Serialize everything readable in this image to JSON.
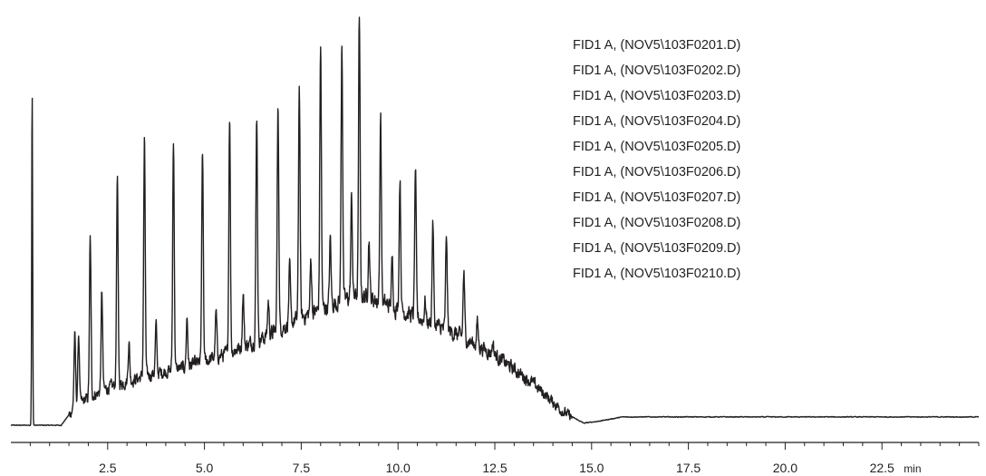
{
  "chart_data": {
    "type": "line",
    "title": "",
    "xlabel": "",
    "ylabel": "",
    "x_unit": "min",
    "xlim": [
      0,
      25
    ],
    "ylim": [
      0,
      1
    ],
    "grid": false,
    "y_axis_shown": false,
    "legend_position": "top-right",
    "line_color": "#231f20",
    "x_ticks": [
      2.5,
      5.0,
      7.5,
      10.0,
      12.5,
      15.0,
      17.5,
      20.0,
      22.5
    ],
    "x_tick_labels": [
      "2.5",
      "5.0",
      "7.5",
      "10.0",
      "12.5",
      "15.0",
      "17.5",
      "20.0",
      "22.5"
    ],
    "minor_tick_step": 0.5,
    "series": [
      {
        "name": "FID1 A, (NOV5\\103F0201.D)"
      },
      {
        "name": "FID1 A, (NOV5\\103F0202.D)"
      },
      {
        "name": "FID1 A, (NOV5\\103F0203.D)"
      },
      {
        "name": "FID1 A, (NOV5\\103F0204.D)"
      },
      {
        "name": "FID1 A, (NOV5\\103F0205.D)"
      },
      {
        "name": "FID1 A, (NOV5\\103F0206.D)"
      },
      {
        "name": "FID1 A, (NOV5\\103F0207.D)"
      },
      {
        "name": "FID1 A, (NOV5\\103F0208.D)"
      },
      {
        "name": "FID1 A, (NOV5\\103F0209.D)"
      },
      {
        "name": "FID1 A, (NOV5\\103F0210.D)"
      }
    ],
    "baseline": 0.0,
    "hump": [
      [
        0,
        0.0
      ],
      [
        1.3,
        0.0
      ],
      [
        1.7,
        0.05
      ],
      [
        2.5,
        0.09
      ],
      [
        3.5,
        0.12
      ],
      [
        4.5,
        0.14
      ],
      [
        5.5,
        0.17
      ],
      [
        6.5,
        0.21
      ],
      [
        7.5,
        0.26
      ],
      [
        8.5,
        0.3
      ],
      [
        9.0,
        0.315
      ],
      [
        9.5,
        0.3
      ],
      [
        10.5,
        0.26
      ],
      [
        11.5,
        0.22
      ],
      [
        12.5,
        0.17
      ],
      [
        13.5,
        0.1
      ],
      [
        14.3,
        0.03
      ],
      [
        14.8,
        0.005
      ],
      [
        15.2,
        0.01
      ],
      [
        15.8,
        0.02
      ],
      [
        25,
        0.02
      ]
    ],
    "peaks": [
      {
        "rt": 0.55,
        "height": 0.8
      },
      {
        "rt": 1.65,
        "height": 0.22
      },
      {
        "rt": 1.75,
        "height": 0.22
      },
      {
        "rt": 2.05,
        "height": 0.45
      },
      {
        "rt": 2.35,
        "height": 0.32
      },
      {
        "rt": 2.75,
        "height": 0.6
      },
      {
        "rt": 3.05,
        "height": 0.2
      },
      {
        "rt": 3.45,
        "height": 0.69
      },
      {
        "rt": 3.75,
        "height": 0.24
      },
      {
        "rt": 4.2,
        "height": 0.69
      },
      {
        "rt": 4.55,
        "height": 0.26
      },
      {
        "rt": 4.95,
        "height": 0.66
      },
      {
        "rt": 5.3,
        "height": 0.27
      },
      {
        "rt": 5.65,
        "height": 0.75
      },
      {
        "rt": 6.0,
        "height": 0.32
      },
      {
        "rt": 6.35,
        "height": 0.75
      },
      {
        "rt": 6.65,
        "height": 0.3
      },
      {
        "rt": 6.9,
        "height": 0.78
      },
      {
        "rt": 7.2,
        "height": 0.38
      },
      {
        "rt": 7.45,
        "height": 0.82
      },
      {
        "rt": 7.75,
        "height": 0.4
      },
      {
        "rt": 8.0,
        "height": 0.92
      },
      {
        "rt": 8.25,
        "height": 0.45
      },
      {
        "rt": 8.55,
        "height": 0.93
      },
      {
        "rt": 8.8,
        "height": 0.55
      },
      {
        "rt": 9.0,
        "height": 0.98
      },
      {
        "rt": 9.25,
        "height": 0.45
      },
      {
        "rt": 9.55,
        "height": 0.75
      },
      {
        "rt": 9.85,
        "height": 0.4
      },
      {
        "rt": 10.05,
        "height": 0.6
      },
      {
        "rt": 10.45,
        "height": 0.62
      },
      {
        "rt": 10.7,
        "height": 0.3
      },
      {
        "rt": 10.9,
        "height": 0.49
      },
      {
        "rt": 11.25,
        "height": 0.46
      },
      {
        "rt": 11.7,
        "height": 0.37
      },
      {
        "rt": 12.05,
        "height": 0.25
      },
      {
        "rt": 12.45,
        "height": 0.2
      },
      {
        "rt": 12.85,
        "height": 0.11
      },
      {
        "rt": 13.3,
        "height": 0.06
      },
      {
        "rt": 13.8,
        "height": 0.03
      }
    ]
  }
}
